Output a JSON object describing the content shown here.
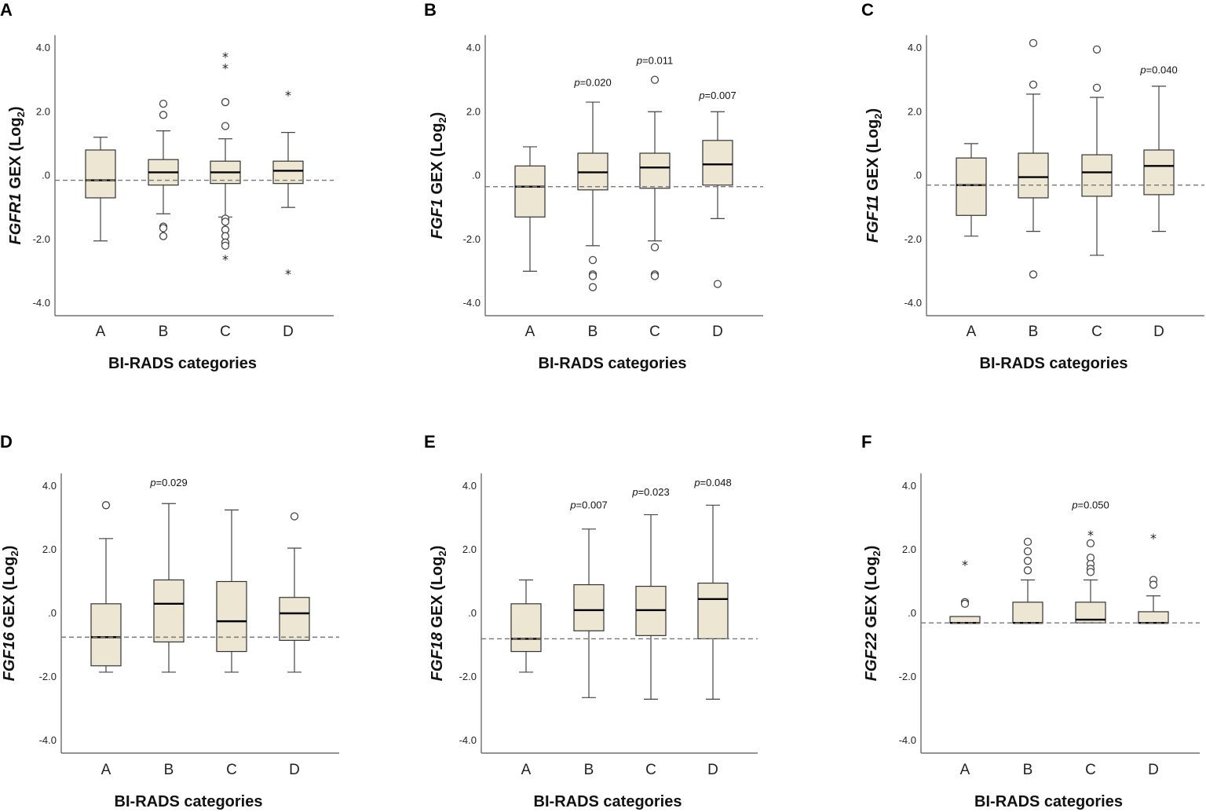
{
  "chart_data": [
    {
      "type": "box",
      "panel": "A",
      "gene": "FGFR1",
      "ylabel_suffix": " GEX (Log",
      "ylabel_sub": "2",
      "ylabel_close": ")",
      "xlabel": "BI-RADS categories",
      "categories": [
        "A",
        "B",
        "C",
        "D"
      ],
      "ylim": [
        -4.4,
        4.4
      ],
      "yticks": [
        4.0,
        2.0,
        0.0,
        -2.0,
        -4.0
      ],
      "ytick_labels": [
        "4.0",
        "2.0",
        ".0",
        "-2.0",
        "-4.0"
      ],
      "reference_line": -0.15,
      "boxes": [
        {
          "q1": -0.7,
          "median": -0.15,
          "q3": 0.8,
          "whisker_low": -2.05,
          "whisker_high": 1.2,
          "outliers": [],
          "extremes": []
        },
        {
          "q1": -0.3,
          "median": 0.1,
          "q3": 0.5,
          "whisker_low": -1.2,
          "whisker_high": 1.4,
          "outliers": [
            2.25,
            1.9,
            -1.6,
            -1.65,
            -1.9
          ],
          "extremes": []
        },
        {
          "q1": -0.25,
          "median": 0.1,
          "q3": 0.45,
          "whisker_low": -1.3,
          "whisker_high": 1.15,
          "outliers": [
            2.3,
            1.55,
            -1.35,
            -1.45,
            -1.7,
            -1.9,
            -2.1,
            -2.2
          ],
          "extremes": [
            3.75,
            3.4,
            -2.6
          ]
        },
        {
          "q1": -0.25,
          "median": 0.15,
          "q3": 0.45,
          "whisker_low": -1.0,
          "whisker_high": 1.35,
          "outliers": [],
          "extremes": [
            2.55,
            -3.05
          ]
        }
      ],
      "p_values": []
    },
    {
      "type": "box",
      "panel": "B",
      "gene": "FGF1",
      "ylabel_suffix": " GEX (Log",
      "ylabel_sub": "2",
      "ylabel_close": ")",
      "xlabel": "BI-RADS categories",
      "categories": [
        "A",
        "B",
        "C",
        "D"
      ],
      "ylim": [
        -4.4,
        4.4
      ],
      "yticks": [
        4.0,
        2.0,
        0.0,
        -2.0,
        -4.0
      ],
      "ytick_labels": [
        "4.0",
        "2.0",
        ".0",
        "-2.0",
        "-4.0"
      ],
      "reference_line": -0.35,
      "boxes": [
        {
          "q1": -1.3,
          "median": -0.35,
          "q3": 0.3,
          "whisker_low": -3.0,
          "whisker_high": 0.9,
          "outliers": [],
          "extremes": []
        },
        {
          "q1": -0.45,
          "median": 0.1,
          "q3": 0.7,
          "whisker_low": -2.2,
          "whisker_high": 2.3,
          "outliers": [
            -2.65,
            -3.1,
            -3.15,
            -3.5
          ],
          "extremes": []
        },
        {
          "q1": -0.4,
          "median": 0.25,
          "q3": 0.7,
          "whisker_low": -2.05,
          "whisker_high": 2.0,
          "outliers": [
            3.0,
            -2.25,
            -3.1,
            -3.15
          ],
          "extremes": []
        },
        {
          "q1": -0.3,
          "median": 0.35,
          "q3": 1.1,
          "whisker_low": -1.35,
          "whisker_high": 2.0,
          "outliers": [
            -3.4
          ],
          "extremes": []
        }
      ],
      "p_values": [
        {
          "category": "B",
          "label": "p",
          "value": "=0.020",
          "y": 2.9
        },
        {
          "category": "C",
          "label": "p",
          "value": "=0.011",
          "y": 3.6
        },
        {
          "category": "D",
          "label": "p",
          "value": "=0.007",
          "y": 2.5
        }
      ]
    },
    {
      "type": "box",
      "panel": "C",
      "gene": "FGF11",
      "ylabel_suffix": " GEX (Log",
      "ylabel_sub": "2",
      "ylabel_close": ")",
      "xlabel": "BI-RADS categories",
      "categories": [
        "A",
        "B",
        "C",
        "D"
      ],
      "ylim": [
        -4.4,
        4.4
      ],
      "yticks": [
        4.0,
        2.0,
        0.0,
        -2.0,
        -4.0
      ],
      "ytick_labels": [
        "4.0",
        "2.0",
        ".0",
        "-2.0",
        "-4.0"
      ],
      "reference_line": -0.3,
      "boxes": [
        {
          "q1": -1.25,
          "median": -0.3,
          "q3": 0.55,
          "whisker_low": -1.9,
          "whisker_high": 1.0,
          "outliers": [],
          "extremes": []
        },
        {
          "q1": -0.7,
          "median": -0.05,
          "q3": 0.7,
          "whisker_low": -1.75,
          "whisker_high": 2.55,
          "outliers": [
            4.15,
            2.85,
            -3.1
          ],
          "extremes": []
        },
        {
          "q1": -0.65,
          "median": 0.1,
          "q3": 0.65,
          "whisker_low": -2.5,
          "whisker_high": 2.45,
          "outliers": [
            3.95,
            2.75
          ],
          "extremes": []
        },
        {
          "q1": -0.6,
          "median": 0.3,
          "q3": 0.8,
          "whisker_low": -1.75,
          "whisker_high": 2.8,
          "outliers": [],
          "extremes": []
        }
      ],
      "p_values": [
        {
          "category": "D",
          "label": "p",
          "value": "=0.040",
          "y": 3.3
        }
      ]
    },
    {
      "type": "box",
      "panel": "D",
      "gene": "FGF16",
      "ylabel_suffix": " GEX (Log",
      "ylabel_sub": "2",
      "ylabel_close": ")",
      "xlabel": "BI-RADS categories",
      "categories": [
        "A",
        "B",
        "C",
        "D"
      ],
      "ylim": [
        -4.4,
        4.4
      ],
      "yticks": [
        4.0,
        2.0,
        0.0,
        -2.0,
        -4.0
      ],
      "ytick_labels": [
        "4.0",
        "2.0",
        ".0",
        "-2.0",
        "-4.0"
      ],
      "reference_line": -0.75,
      "boxes": [
        {
          "q1": -1.65,
          "median": -0.75,
          "q3": 0.3,
          "whisker_low": -1.85,
          "whisker_high": 2.35,
          "outliers": [
            3.4
          ],
          "extremes": []
        },
        {
          "q1": -0.9,
          "median": 0.3,
          "q3": 1.05,
          "whisker_low": -1.85,
          "whisker_high": 3.45,
          "outliers": [],
          "extremes": []
        },
        {
          "q1": -1.2,
          "median": -0.25,
          "q3": 1.0,
          "whisker_low": -1.85,
          "whisker_high": 3.25,
          "outliers": [],
          "extremes": []
        },
        {
          "q1": -0.85,
          "median": 0.0,
          "q3": 0.5,
          "whisker_low": -1.85,
          "whisker_high": 2.05,
          "outliers": [
            3.05
          ],
          "extremes": []
        }
      ],
      "p_values": [
        {
          "category": "B",
          "label": "p",
          "value": "=0.029",
          "y": 4.1
        }
      ]
    },
    {
      "type": "box",
      "panel": "E",
      "gene": "FGF18",
      "ylabel_suffix": " GEX (Log",
      "ylabel_sub": "2",
      "ylabel_close": ")",
      "xlabel": "BI-RADS categories",
      "categories": [
        "A",
        "B",
        "C",
        "D"
      ],
      "ylim": [
        -4.4,
        4.4
      ],
      "yticks": [
        4.0,
        2.0,
        0.0,
        -2.0,
        -4.0
      ],
      "ytick_labels": [
        "4.0",
        "2.0",
        ".0",
        "-2.0",
        "-4.0"
      ],
      "reference_line": -0.8,
      "boxes": [
        {
          "q1": -1.2,
          "median": -0.8,
          "q3": 0.3,
          "whisker_low": -1.85,
          "whisker_high": 1.05,
          "outliers": [],
          "extremes": []
        },
        {
          "q1": -0.55,
          "median": 0.1,
          "q3": 0.9,
          "whisker_low": -2.65,
          "whisker_high": 2.65,
          "outliers": [],
          "extremes": []
        },
        {
          "q1": -0.7,
          "median": 0.1,
          "q3": 0.85,
          "whisker_low": -2.7,
          "whisker_high": 3.1,
          "outliers": [],
          "extremes": []
        },
        {
          "q1": -0.8,
          "median": 0.45,
          "q3": 0.95,
          "whisker_low": -2.7,
          "whisker_high": 3.4,
          "outliers": [],
          "extremes": []
        }
      ],
      "p_values": [
        {
          "category": "B",
          "label": "p",
          "value": "=0.007",
          "y": 3.4
        },
        {
          "category": "C",
          "label": "p",
          "value": "=0.023",
          "y": 3.8
        },
        {
          "category": "D",
          "label": "p",
          "value": "=0.048",
          "y": 4.1
        }
      ]
    },
    {
      "type": "box",
      "panel": "F",
      "gene": "FGF22",
      "ylabel_suffix": " GEX (Log",
      "ylabel_sub": "2",
      "ylabel_close": ")",
      "xlabel": "BI-RADS categories",
      "categories": [
        "A",
        "B",
        "C",
        "D"
      ],
      "ylim": [
        -4.4,
        4.4
      ],
      "yticks": [
        4.0,
        2.0,
        0.0,
        -2.0,
        -4.0
      ],
      "ytick_labels": [
        "4.0",
        "2.0",
        ".0",
        "-2.0",
        "-4.0"
      ],
      "reference_line": -0.3,
      "boxes": [
        {
          "q1": -0.3,
          "median": -0.3,
          "q3": -0.1,
          "whisker_low": -0.3,
          "whisker_high": -0.1,
          "outliers": [
            0.35,
            0.3
          ],
          "extremes": [
            1.55
          ]
        },
        {
          "q1": -0.3,
          "median": -0.3,
          "q3": 0.35,
          "whisker_low": -0.3,
          "whisker_high": 1.05,
          "outliers": [
            2.25,
            1.95,
            1.65,
            1.35
          ],
          "extremes": []
        },
        {
          "q1": -0.3,
          "median": -0.2,
          "q3": 0.35,
          "whisker_low": -0.3,
          "whisker_high": 1.05,
          "outliers": [
            2.2,
            1.75,
            1.55,
            1.4,
            1.3
          ],
          "extremes": [
            2.5
          ]
        },
        {
          "q1": -0.3,
          "median": -0.3,
          "q3": 0.05,
          "whisker_low": -0.3,
          "whisker_high": 0.55,
          "outliers": [
            1.05,
            0.9
          ],
          "extremes": [
            2.4
          ]
        }
      ],
      "p_values": [
        {
          "category": "C",
          "label": "p",
          "value": "=0.050",
          "y": 3.4
        }
      ]
    }
  ]
}
